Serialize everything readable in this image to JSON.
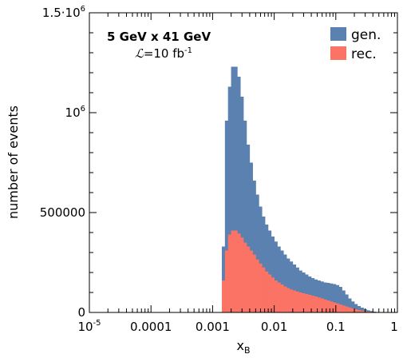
{
  "chart_data": {
    "type": "bar",
    "histogram": true,
    "xscale": "log",
    "xlabel_main": "x",
    "xlabel_sub": "B",
    "ylabel": "number of events",
    "xlim": [
      1e-05,
      1
    ],
    "ylim": [
      0,
      1500000
    ],
    "x_ticks": [
      {
        "value": 1e-05,
        "label_base": "10",
        "label_exp": "-5"
      },
      {
        "value": 0.0001,
        "label": "0.0001"
      },
      {
        "value": 0.001,
        "label": "0.001"
      },
      {
        "value": 0.01,
        "label": "0.01"
      },
      {
        "value": 0.1,
        "label": "0.1"
      },
      {
        "value": 1,
        "label": "1"
      }
    ],
    "y_ticks": [
      {
        "value": 0,
        "label": "0"
      },
      {
        "value": 500000,
        "label": "500000"
      },
      {
        "value": 1000000,
        "label_base": "10",
        "label_exp": "6"
      },
      {
        "value": 1500000,
        "label_base": "1.5·10",
        "label_exp": "6"
      }
    ],
    "annotations": {
      "energy": "5 GeV x 41 GeV",
      "lumi_symbol": "ℒ",
      "lumi_value": "=10 fb",
      "lumi_exp": "-1"
    },
    "bin_edges_log10": [
      -2.85,
      -2.8,
      -2.75,
      -2.7,
      -2.65,
      -2.6,
      -2.55,
      -2.5,
      -2.45,
      -2.4,
      -2.35,
      -2.3,
      -2.25,
      -2.2,
      -2.15,
      -2.1,
      -2.05,
      -2.0,
      -1.95,
      -1.9,
      -1.85,
      -1.8,
      -1.75,
      -1.7,
      -1.65,
      -1.6,
      -1.55,
      -1.5,
      -1.45,
      -1.4,
      -1.35,
      -1.3,
      -1.25,
      -1.2,
      -1.15,
      -1.1,
      -1.05,
      -1.0,
      -0.95,
      -0.9,
      -0.85,
      -0.8,
      -0.75,
      -0.7,
      -0.65,
      -0.6,
      -0.55,
      -0.5,
      -0.45,
      -0.4,
      -0.35,
      -0.3,
      -0.25
    ],
    "series": [
      {
        "name": "gen.",
        "color": "#5b81b0",
        "values": [
          330000,
          960000,
          1130000,
          1230000,
          1230000,
          1180000,
          1080000,
          960000,
          840000,
          750000,
          660000,
          590000,
          530000,
          480000,
          440000,
          410000,
          380000,
          355000,
          330000,
          310000,
          290000,
          270000,
          255000,
          240000,
          225000,
          210000,
          200000,
          190000,
          180000,
          172000,
          165000,
          160000,
          155000,
          150000,
          148000,
          145000,
          142000,
          137000,
          128000,
          110000,
          90000,
          70000,
          55000,
          42000,
          32000,
          24000,
          17000,
          11000,
          7000,
          4000,
          2000,
          800
        ]
      },
      {
        "name": "rec.",
        "color": "#fb7364",
        "values": [
          160000,
          310000,
          390000,
          410000,
          410000,
          395000,
          375000,
          350000,
          330000,
          310000,
          290000,
          265000,
          245000,
          225000,
          205000,
          190000,
          175000,
          160000,
          150000,
          140000,
          130000,
          122000,
          115000,
          110000,
          105000,
          100000,
          96000,
          92000,
          88000,
          84000,
          80000,
          75000,
          70000,
          65000,
          60000,
          55000,
          50000,
          45000,
          40000,
          35000,
          30000,
          25000,
          20000,
          16000,
          12000,
          9000,
          6000,
          4000,
          2500,
          1500,
          700,
          300
        ]
      }
    ]
  }
}
